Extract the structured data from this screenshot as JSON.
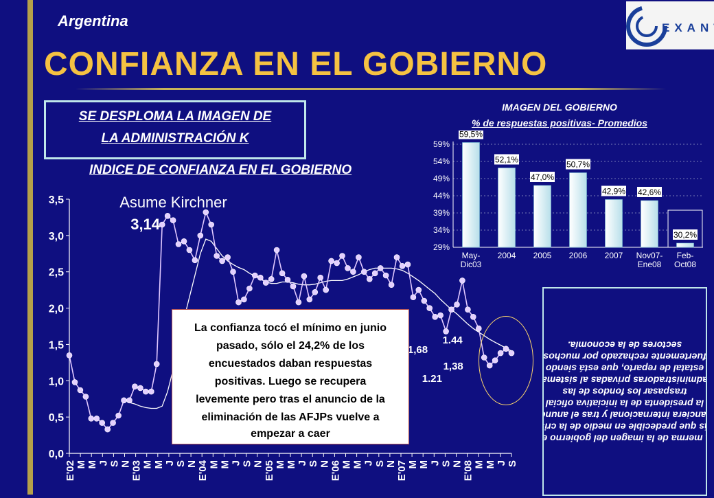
{
  "header": {
    "country": "Argentina",
    "title": "CONFIANZA EN EL GOBIERNO",
    "logo_text": "EXANTE"
  },
  "boxed_header": {
    "line1": "SE DESPLOMA LA IMAGEN DE",
    "line2": "LA ADMINISTRACIÓN K"
  },
  "index_title": "INDICE DE CONFIANZA EN EL GOBIERNO",
  "callout": {
    "lines": [
      "La confianza tocó el mínimo en  junio",
      "pasado, sólo el 24,2% de los",
      "encuestados daban respuestas",
      "positivas. Luego se recupera",
      "levemente pero tras el anuncio de la",
      "eliminación de las AFJPs vuelve a",
      "empezar a caer"
    ]
  },
  "note": {
    "text": "La merma de la imagen del gobierno era más que predecible en medio de la crisis financiera internacional y tras el anuncio de la presidenta de la iniciativa oficial de traspasar los fondos de las administradoras privadas al sistema estatal de reparto, que está siendo fuertemente rechazado por muchos sectores de la economía."
  },
  "chart_data": [
    {
      "type": "line",
      "title": "INDICE DE CONFIANZA EN EL GOBIERNO",
      "ylim": [
        0,
        3.5
      ],
      "yticks": [
        "0,0",
        "0,5",
        "1,0",
        "1,5",
        "2,0",
        "2,5",
        "3,0",
        "3,5"
      ],
      "xtick_labels": [
        "E'02",
        "M",
        "M",
        "J",
        "S",
        "N",
        "E'03",
        "M",
        "M",
        "J",
        "S",
        "N",
        "E'04",
        "M",
        "M",
        "J",
        "S",
        "N",
        "E'05",
        "M",
        "M",
        "J",
        "S",
        "N",
        "E'06",
        "M",
        "M",
        "J",
        "S",
        "N",
        "E'07",
        "M",
        "M",
        "J",
        "S",
        "N",
        "E'08",
        "M",
        "M",
        "J",
        "S"
      ],
      "annotations": [
        {
          "text": "Asume Kirchner",
          "x": 16
        },
        {
          "text": "3,14",
          "x": 16
        },
        {
          "text": "1,68",
          "x": 63
        },
        {
          "text": "1.44",
          "x": 69
        },
        {
          "text": "1.21",
          "x": 66
        },
        {
          "text": "1,38",
          "x": 69
        }
      ],
      "series": [
        {
          "name": "",
          "values": [
            1.35,
            0.98,
            0.87,
            0.78,
            0.48,
            0.48,
            0.42,
            0.33,
            0.42,
            0.52,
            0.73,
            0.73,
            0.92,
            0.9,
            0.85,
            0.85,
            1.23,
            3.15,
            3.27,
            3.21,
            2.88,
            2.92,
            2.8,
            2.66,
            3.0,
            3.32,
            3.15,
            2.72,
            2.65,
            2.7,
            2.5,
            2.08,
            2.12,
            2.27,
            2.45,
            2.42,
            2.35,
            2.4,
            2.8,
            2.48,
            2.39,
            2.3,
            2.08,
            2.44,
            2.12,
            2.22,
            2.42,
            2.25,
            2.65,
            2.62,
            2.72,
            2.55,
            2.5,
            2.7,
            2.5,
            2.4,
            2.48,
            2.55,
            2.45,
            2.32,
            2.7,
            2.58,
            2.6,
            2.15,
            2.25,
            2.1,
            2.0,
            1.88,
            1.9,
            1.68,
            1.98,
            2.05,
            2.38,
            1.98,
            1.88,
            1.72,
            1.32,
            1.21,
            1.28,
            1.38,
            1.44,
            1.38
          ]
        },
        {
          "name": "",
          "values": [
            null,
            null,
            null,
            null,
            null,
            null,
            null,
            null,
            null,
            null,
            null,
            0.7,
            0.68,
            0.65,
            0.63,
            0.62,
            0.62,
            0.65,
            0.85,
            1.15,
            1.5,
            1.85,
            2.15,
            2.45,
            2.75,
            2.95,
            2.92,
            2.82,
            2.72,
            2.65,
            2.6,
            2.56,
            2.53,
            2.48,
            2.44,
            2.4,
            2.36,
            2.34,
            2.34,
            2.36,
            2.36,
            2.35,
            2.33,
            2.32,
            2.32,
            2.33,
            2.35,
            2.37,
            2.38,
            2.38,
            2.38,
            2.4,
            2.43,
            2.46,
            2.5,
            2.53,
            2.55,
            2.55,
            2.55,
            2.55,
            2.54,
            2.52,
            2.48,
            2.43,
            2.38,
            2.32,
            2.26,
            2.2,
            2.12,
            2.05,
            1.98,
            1.92,
            1.85,
            1.78,
            1.72,
            1.67,
            1.62,
            1.57,
            1.53,
            1.49,
            1.45,
            1.41
          ]
        }
      ]
    },
    {
      "type": "bar",
      "title": "IMAGEN DEL GOBIERNO",
      "subtitle": "% de respuestas positivas- Promedios",
      "categories": [
        [
          "May-",
          "Dic03"
        ],
        [
          "2004"
        ],
        [
          "2005"
        ],
        [
          "2006"
        ],
        [
          "2007"
        ],
        [
          "Nov07-",
          "Ene08"
        ],
        [
          "Feb-",
          "Oct08"
        ]
      ],
      "values": [
        59.5,
        52.1,
        47.0,
        50.7,
        42.9,
        42.6,
        30.2
      ],
      "value_labels": [
        "59,5%",
        "52,1%",
        "47,0%",
        "50,7%",
        "42,9%",
        "42,6%",
        "30,2%"
      ],
      "ylim": [
        29,
        59
      ],
      "yticks": [
        "29%",
        "34%",
        "39%",
        "44%",
        "49%",
        "54%",
        "59%"
      ]
    }
  ]
}
